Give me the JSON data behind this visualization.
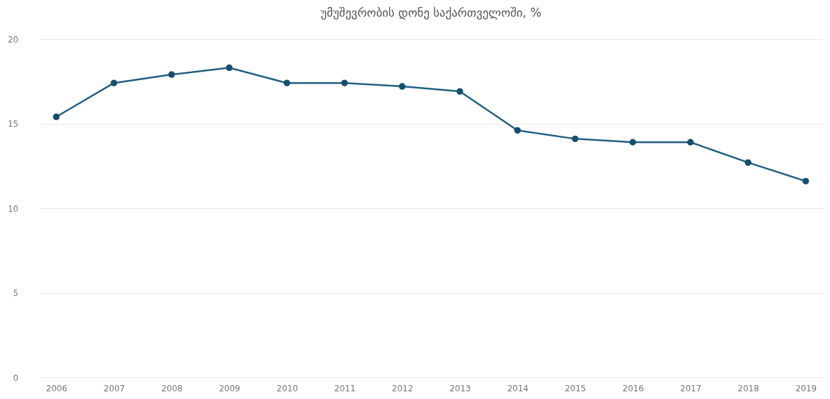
{
  "chart_data": {
    "type": "line",
    "title": "უმუშევრობის დონე საქართველოში, %",
    "categories": [
      "2006",
      "2007",
      "2008",
      "2009",
      "2010",
      "2011",
      "2012",
      "2013",
      "2014",
      "2015",
      "2016",
      "2017",
      "2018",
      "2019"
    ],
    "series": [
      {
        "color": "#1f5f80",
        "values": [
          15.4,
          17.4,
          17.9,
          18.3,
          17.4,
          17.4,
          17.2,
          16.9,
          14.6,
          14.1,
          13.9,
          13.9,
          12.7,
          11.6
        ]
      }
    ],
    "ylim": [
      0,
      20
    ],
    "yticks": [
      0,
      5,
      10,
      15,
      20
    ],
    "grid": "y",
    "marker": "circle",
    "line_style": "solid",
    "legend": false
  }
}
